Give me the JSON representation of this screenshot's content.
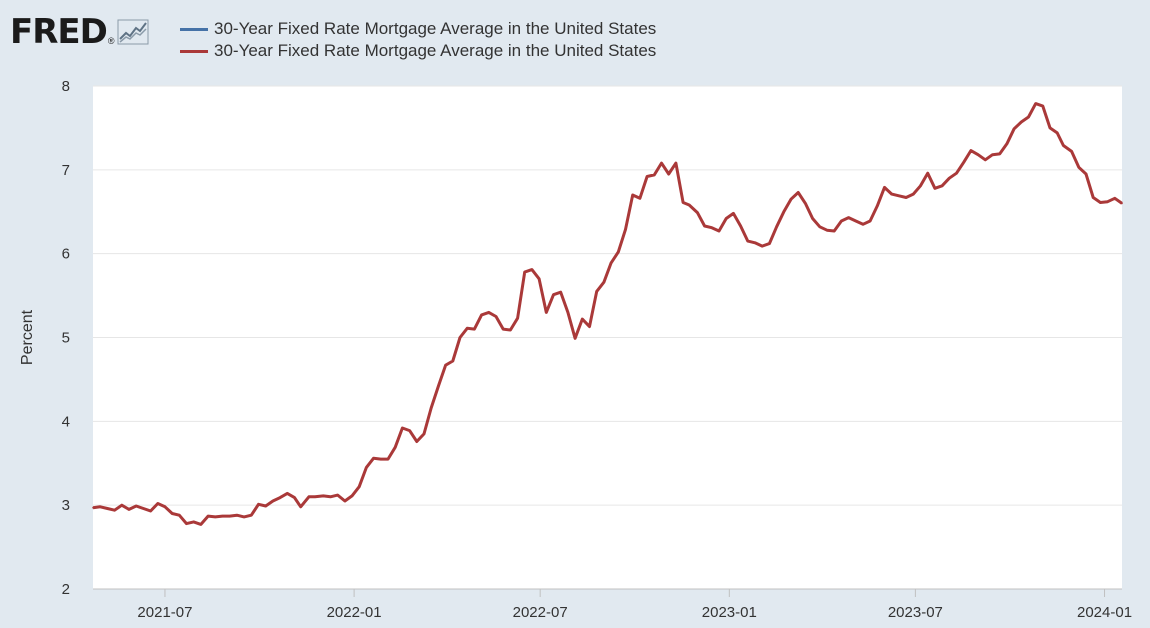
{
  "logo": {
    "text": "FRED",
    "registered": "®",
    "graph_icon": "line-graph-icon"
  },
  "legend": [
    {
      "label": "30-Year Fixed Rate Mortgage Average in the United States",
      "color": "#4572a7"
    },
    {
      "label": "30-Year Fixed Rate Mortgage Average in the United States",
      "color": "#aa3939"
    }
  ],
  "colors": {
    "background": "#e1e9f0",
    "plot_background": "#ffffff",
    "gridline": "#e6e6e6",
    "series": "#aa3939"
  },
  "chart_data": {
    "type": "line",
    "title": "",
    "xlabel": "",
    "ylabel": "Percent",
    "ylim": [
      2,
      8
    ],
    "yticks": [
      "2",
      "3",
      "4",
      "5",
      "6",
      "7",
      "8"
    ],
    "xlim": [
      "2021-04-22",
      "2024-01-18"
    ],
    "xticks": [
      {
        "date": "2021-07-01",
        "label": "2021-07"
      },
      {
        "date": "2022-01-01",
        "label": "2022-01"
      },
      {
        "date": "2022-07-01",
        "label": "2022-07"
      },
      {
        "date": "2023-01-01",
        "label": "2023-01"
      },
      {
        "date": "2023-07-01",
        "label": "2023-07"
      },
      {
        "date": "2024-01-01",
        "label": "2024-01"
      }
    ],
    "grid": true,
    "legend_position": "top-left",
    "series": [
      {
        "name": "30-Year Fixed Rate Mortgage Average in the United States",
        "color": "#aa3939",
        "x": [
          "2021-04-22",
          "2021-04-29",
          "2021-05-06",
          "2021-05-13",
          "2021-05-20",
          "2021-05-27",
          "2021-06-03",
          "2021-06-10",
          "2021-06-17",
          "2021-06-24",
          "2021-07-01",
          "2021-07-08",
          "2021-07-15",
          "2021-07-22",
          "2021-07-29",
          "2021-08-05",
          "2021-08-12",
          "2021-08-19",
          "2021-08-26",
          "2021-09-02",
          "2021-09-09",
          "2021-09-16",
          "2021-09-23",
          "2021-09-30",
          "2021-10-07",
          "2021-10-14",
          "2021-10-21",
          "2021-10-28",
          "2021-11-04",
          "2021-11-10",
          "2021-11-18",
          "2021-11-24",
          "2021-12-02",
          "2021-12-09",
          "2021-12-16",
          "2021-12-23",
          "2021-12-30",
          "2022-01-06",
          "2022-01-13",
          "2022-01-20",
          "2022-01-27",
          "2022-02-03",
          "2022-02-10",
          "2022-02-17",
          "2022-02-24",
          "2022-03-03",
          "2022-03-10",
          "2022-03-17",
          "2022-03-24",
          "2022-03-31",
          "2022-04-07",
          "2022-04-14",
          "2022-04-21",
          "2022-04-28",
          "2022-05-05",
          "2022-05-12",
          "2022-05-19",
          "2022-05-26",
          "2022-06-02",
          "2022-06-09",
          "2022-06-16",
          "2022-06-23",
          "2022-06-30",
          "2022-07-07",
          "2022-07-14",
          "2022-07-21",
          "2022-07-28",
          "2022-08-04",
          "2022-08-11",
          "2022-08-18",
          "2022-08-25",
          "2022-09-01",
          "2022-09-08",
          "2022-09-15",
          "2022-09-22",
          "2022-09-29",
          "2022-10-06",
          "2022-10-13",
          "2022-10-20",
          "2022-10-27",
          "2022-11-03",
          "2022-11-10",
          "2022-11-17",
          "2022-11-23",
          "2022-12-01",
          "2022-12-08",
          "2022-12-15",
          "2022-12-22",
          "2022-12-29",
          "2023-01-05",
          "2023-01-12",
          "2023-01-19",
          "2023-01-26",
          "2023-02-02",
          "2023-02-09",
          "2023-02-16",
          "2023-02-23",
          "2023-03-02",
          "2023-03-09",
          "2023-03-16",
          "2023-03-23",
          "2023-03-30",
          "2023-04-06",
          "2023-04-13",
          "2023-04-20",
          "2023-04-27",
          "2023-05-04",
          "2023-05-11",
          "2023-05-18",
          "2023-05-25",
          "2023-06-01",
          "2023-06-08",
          "2023-06-15",
          "2023-06-22",
          "2023-06-29",
          "2023-07-06",
          "2023-07-13",
          "2023-07-20",
          "2023-07-27",
          "2023-08-03",
          "2023-08-10",
          "2023-08-17",
          "2023-08-24",
          "2023-08-31",
          "2023-09-07",
          "2023-09-14",
          "2023-09-21",
          "2023-09-28",
          "2023-10-05",
          "2023-10-12",
          "2023-10-19",
          "2023-10-26",
          "2023-11-02",
          "2023-11-09",
          "2023-11-16",
          "2023-11-22",
          "2023-11-30",
          "2023-12-07",
          "2023-12-14",
          "2023-12-21",
          "2023-12-28",
          "2024-01-04",
          "2024-01-11",
          "2024-01-18"
        ],
        "values": [
          2.97,
          2.98,
          2.96,
          2.94,
          3.0,
          2.95,
          2.99,
          2.96,
          2.93,
          3.02,
          2.98,
          2.9,
          2.88,
          2.78,
          2.8,
          2.77,
          2.87,
          2.86,
          2.87,
          2.87,
          2.88,
          2.86,
          2.88,
          3.01,
          2.99,
          3.05,
          3.09,
          3.14,
          3.09,
          2.98,
          3.1,
          3.1,
          3.11,
          3.1,
          3.12,
          3.05,
          3.11,
          3.22,
          3.45,
          3.56,
          3.55,
          3.55,
          3.69,
          3.92,
          3.89,
          3.76,
          3.85,
          4.16,
          4.42,
          4.67,
          4.72,
          5.0,
          5.11,
          5.1,
          5.27,
          5.3,
          5.25,
          5.1,
          5.09,
          5.23,
          5.78,
          5.81,
          5.7,
          5.3,
          5.51,
          5.54,
          5.3,
          4.99,
          5.22,
          5.13,
          5.55,
          5.66,
          5.89,
          6.02,
          6.29,
          6.7,
          6.66,
          6.92,
          6.94,
          7.08,
          6.95,
          7.08,
          6.61,
          6.58,
          6.49,
          6.33,
          6.31,
          6.27,
          6.42,
          6.48,
          6.33,
          6.15,
          6.13,
          6.09,
          6.12,
          6.32,
          6.5,
          6.65,
          6.73,
          6.6,
          6.42,
          6.32,
          6.28,
          6.27,
          6.39,
          6.43,
          6.39,
          6.35,
          6.39,
          6.57,
          6.79,
          6.71,
          6.69,
          6.67,
          6.71,
          6.81,
          6.96,
          6.78,
          6.81,
          6.9,
          6.96,
          7.09,
          7.23,
          7.18,
          7.12,
          7.18,
          7.19,
          7.31,
          7.49,
          7.57,
          7.63,
          7.79,
          7.76,
          7.5,
          7.44,
          7.29,
          7.22,
          7.03,
          6.95,
          6.67,
          6.61,
          6.62,
          6.66,
          6.6
        ]
      }
    ]
  }
}
